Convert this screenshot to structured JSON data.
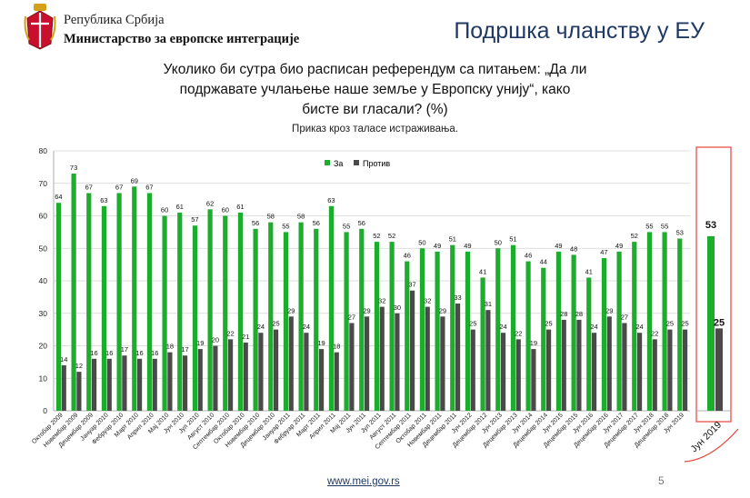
{
  "header": {
    "republic": "Република Србија",
    "ministry": "Министарство за европске интеграције"
  },
  "slide_title": "Подршка чланству у ЕУ",
  "question": {
    "line1": "Уколико би сутра био расписан референдум са питањем: „Да ли",
    "line2": "подржавате учлањење наше земље у Европску унију“, како",
    "line3": "бисте ви гласали? (%)"
  },
  "subtitle": "Приказ кроз таласе истраживања.",
  "colors": {
    "for": "#1dad2c",
    "against": "#4a4a4a",
    "highlight": "#e8413c",
    "title": "#1f3864"
  },
  "chart_data": {
    "type": "bar",
    "ylim": [
      0,
      80
    ],
    "yticks": [
      0,
      10,
      20,
      30,
      40,
      50,
      60,
      70,
      80
    ],
    "legend": [
      "За",
      "Против"
    ],
    "categories": [
      "Октобар 2009",
      "Новембар 2009",
      "Децембар 2009",
      "Јануар 2010",
      "Фебруар 2010",
      "Март 2010",
      "Април 2010",
      "Мај 2010",
      "Јун 2010",
      "Јул 2010",
      "Август 2010",
      "Септембар 2010",
      "Октобар 2010",
      "Новембар 2010",
      "Децембар 2010",
      "Јануар 2011",
      "Фебруар 2011",
      "Март 2011",
      "Април 2011",
      "Мај 2011",
      "Јун 2011",
      "Јул 2011",
      "Август 2011",
      "Септембар 2011",
      "Октобар 2011",
      "Новембар 2011",
      "Децембар 2011",
      "Јун 2012",
      "Децембар 2012",
      "Јун 2013",
      "Децембар 2013",
      "Јун 2014",
      "Децембар 2014",
      "Јун 2015",
      "Децембар 2015",
      "Јун 2016",
      "Децембар 2016",
      "Јун 2017",
      "Децембар 2017",
      "Јун 2018",
      "Децембар 2018",
      "Јун 2019"
    ],
    "series": [
      {
        "name": "За",
        "values": [
          64,
          73,
          67,
          63,
          67,
          69,
          67,
          60,
          61,
          57,
          62,
          60,
          61,
          56,
          58,
          55,
          58,
          56,
          63,
          55,
          56,
          52,
          52,
          46,
          50,
          49,
          51,
          49,
          41,
          50,
          51,
          46,
          44,
          49,
          48,
          41,
          47,
          49,
          52,
          55,
          55,
          53
        ]
      },
      {
        "name": "Против",
        "values": [
          14,
          12,
          16,
          16,
          17,
          16,
          16,
          18,
          17,
          19,
          20,
          22,
          21,
          24,
          25,
          29,
          24,
          19,
          18,
          27,
          29,
          32,
          30,
          37,
          32,
          29,
          33,
          25,
          31,
          24,
          22,
          19,
          25,
          28,
          28,
          24,
          29,
          27,
          24,
          22,
          25,
          25
        ]
      }
    ],
    "highlight": {
      "category": "Јун 2019",
      "for": 53,
      "against": 25
    }
  },
  "footer": {
    "url": "www.mei.gov.rs",
    "page": "5"
  }
}
